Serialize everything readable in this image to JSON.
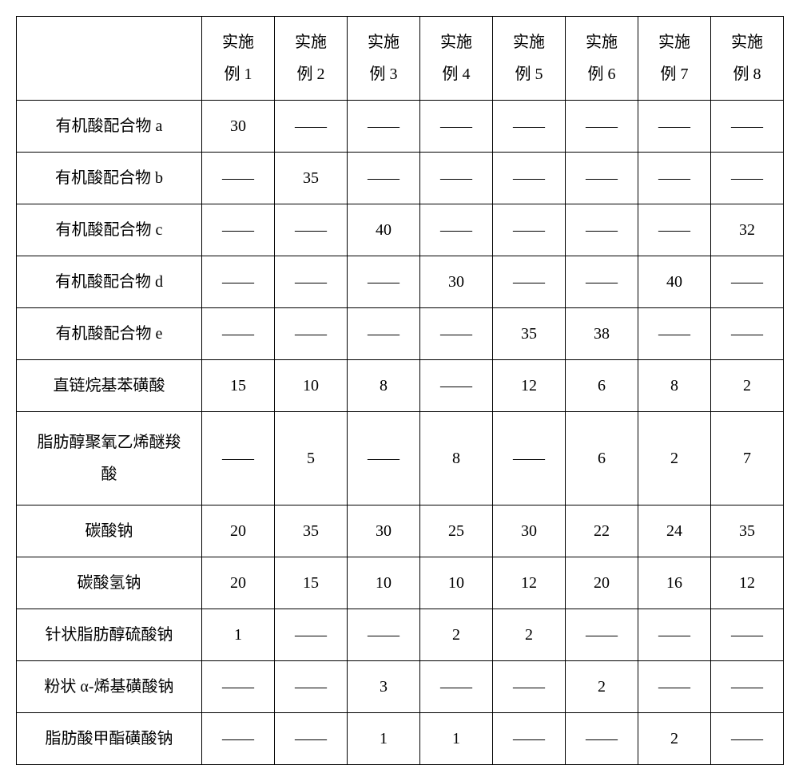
{
  "table": {
    "type": "table",
    "columns": [
      "",
      "实施\n例 1",
      "实施\n例 2",
      "实施\n例 3",
      "实施\n例 4",
      "实施\n例 5",
      "实施\n例 6",
      "实施\n例 7",
      "实施\n例 8"
    ],
    "rowLabels": [
      "有机酸配合物 a",
      "有机酸配合物 b",
      "有机酸配合物 c",
      "有机酸配合物 d",
      "有机酸配合物 e",
      "直链烷基苯磺酸",
      "脂肪醇聚氧乙烯醚羧\n酸",
      "碳酸钠",
      "碳酸氢钠",
      "针状脂肪醇硫酸钠",
      "粉状 α-烯基磺酸钠",
      "脂肪酸甲酯磺酸钠"
    ],
    "rows": [
      [
        "30",
        "——",
        "——",
        "——",
        "——",
        "——",
        "——",
        "——"
      ],
      [
        "——",
        "35",
        "——",
        "——",
        "——",
        "——",
        "——",
        "——"
      ],
      [
        "——",
        "——",
        "40",
        "——",
        "——",
        "——",
        "——",
        "32"
      ],
      [
        "——",
        "——",
        "——",
        "30",
        "——",
        "——",
        "40",
        "——"
      ],
      [
        "——",
        "——",
        "——",
        "——",
        "35",
        "38",
        "——",
        "——"
      ],
      [
        "15",
        "10",
        "8",
        "——",
        "12",
        "6",
        "8",
        "2"
      ],
      [
        "——",
        "5",
        "——",
        "8",
        "——",
        "6",
        "2",
        "7"
      ],
      [
        "20",
        "35",
        "30",
        "25",
        "30",
        "22",
        "24",
        "35"
      ],
      [
        "20",
        "15",
        "10",
        "10",
        "12",
        "20",
        "16",
        "12"
      ],
      [
        "1",
        "——",
        "——",
        "2",
        "2",
        "——",
        "——",
        "——"
      ],
      [
        "——",
        "——",
        "3",
        "——",
        "——",
        "2",
        "——",
        "——"
      ],
      [
        "——",
        "——",
        "1",
        "1",
        "——",
        "——",
        "2",
        "——"
      ]
    ],
    "column_widths": {
      "label": 232,
      "data": 91
    },
    "border_color": "#000000",
    "background_color": "#ffffff",
    "text_color": "#000000",
    "font_size": 20,
    "font_family": "SimSun",
    "tall_row_indices": [
      6
    ]
  }
}
